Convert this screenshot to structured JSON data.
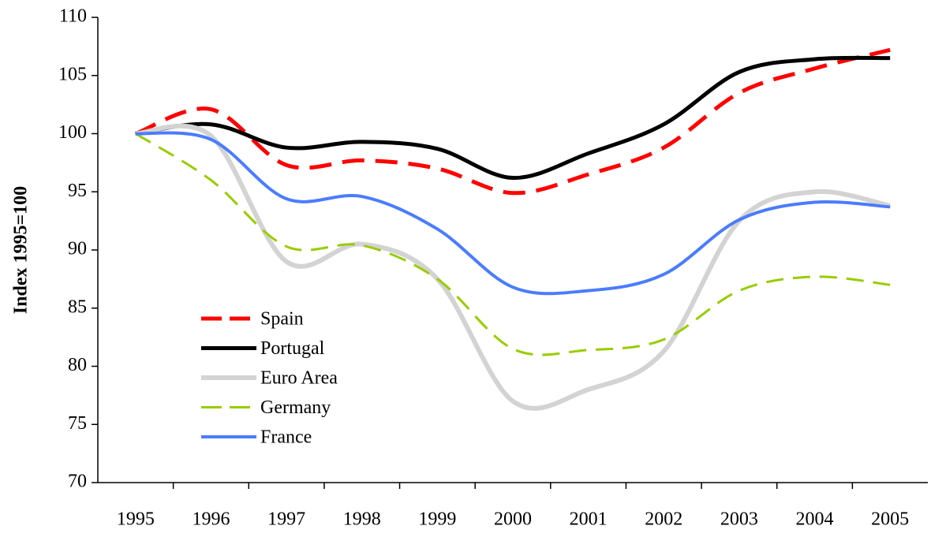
{
  "chart_data": {
    "type": "line",
    "y_label": "Index 1995=100",
    "categories": [
      "1995",
      "1996",
      "1997",
      "1998",
      "1999",
      "2000",
      "2001",
      "2002",
      "2003",
      "2004",
      "2005"
    ],
    "series": [
      {
        "name": "Spain",
        "color": "#ff0000",
        "style": "dashed",
        "values": [
          100,
          102.1,
          97.3,
          97.7,
          97.0,
          94.9,
          96.5,
          98.8,
          103.5,
          105.6,
          107.2
        ]
      },
      {
        "name": "Portugal",
        "color": "#000000",
        "style": "solid",
        "values": [
          100,
          100.8,
          98.8,
          99.3,
          98.7,
          96.2,
          98.3,
          100.8,
          105.3,
          106.4,
          106.5
        ]
      },
      {
        "name": "Euro Area",
        "color": "#d3d3d3",
        "style": "solid",
        "values": [
          100,
          99.8,
          89.0,
          90.5,
          87.5,
          77.0,
          78.0,
          81.3,
          92.5,
          95.0,
          93.8
        ]
      },
      {
        "name": "Germany",
        "color": "#99cc00",
        "style": "dashed",
        "values": [
          100,
          96.0,
          90.3,
          90.4,
          87.5,
          81.5,
          81.4,
          82.3,
          86.5,
          87.7,
          87.0
        ]
      },
      {
        "name": "France",
        "color": "#4a7cff",
        "style": "solid",
        "values": [
          100,
          99.5,
          94.4,
          94.6,
          91.8,
          86.8,
          86.5,
          87.9,
          92.6,
          94.1,
          93.7
        ]
      }
    ],
    "ylim": [
      70,
      110
    ],
    "yticks": [
      70,
      75,
      80,
      85,
      90,
      95,
      100,
      105,
      110
    ],
    "grid": false,
    "legend": "lower left"
  }
}
